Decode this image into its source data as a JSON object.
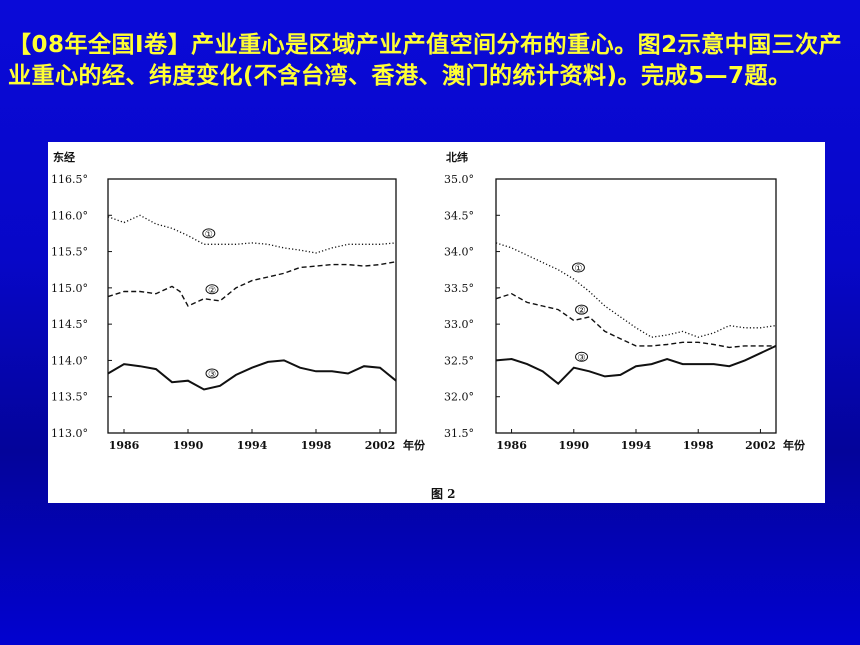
{
  "question": {
    "text": "【08年全国Ⅰ卷】产业重心是区域产业产值空间分布的重心。图2示意中国三次产业重心的经、纬度变化(不含台湾、香港、澳门的统计资料)。完成5—7题。"
  },
  "figure": {
    "caption": "图 2"
  },
  "chart_data": [
    {
      "type": "line",
      "ylabel": "东经",
      "xlabel": "年份",
      "ylim": [
        113.0,
        116.5
      ],
      "xlim": [
        1985,
        2003
      ],
      "yticks": [
        "113.0°",
        "113.5°",
        "114.0°",
        "114.5°",
        "115.0°",
        "115.5°",
        "116.0°",
        "116.5°"
      ],
      "ytick_values": [
        113.0,
        113.5,
        114.0,
        114.5,
        115.0,
        115.5,
        116.0,
        116.5
      ],
      "xticks": [
        "1986",
        "1990",
        "1994",
        "1998",
        "2002"
      ],
      "xtick_values": [
        1986,
        1990,
        1994,
        1998,
        2002
      ],
      "grid": false,
      "series": [
        {
          "name": "①",
          "style": "dotted",
          "x": [
            1985,
            1986,
            1987,
            1988,
            1989,
            1990,
            1991,
            1992,
            1993,
            1994,
            1995,
            1996,
            1997,
            1998,
            1999,
            2000,
            2001,
            2002,
            2003
          ],
          "values": [
            115.98,
            115.9,
            116.0,
            115.88,
            115.82,
            115.72,
            115.6,
            115.6,
            115.6,
            115.62,
            115.6,
            115.55,
            115.52,
            115.48,
            115.55,
            115.6,
            115.6,
            115.6,
            115.62
          ]
        },
        {
          "name": "②",
          "style": "dashed",
          "x": [
            1985,
            1986,
            1987,
            1988,
            1989,
            1989.5,
            1990,
            1991,
            1992,
            1993,
            1994,
            1995,
            1996,
            1997,
            1998,
            1999,
            2000,
            2001,
            2002,
            2003
          ],
          "values": [
            114.88,
            114.95,
            114.95,
            114.92,
            115.02,
            114.95,
            114.75,
            114.85,
            114.82,
            115.0,
            115.1,
            115.15,
            115.2,
            115.28,
            115.3,
            115.32,
            115.32,
            115.3,
            115.32,
            115.36
          ]
        },
        {
          "name": "③",
          "style": "solid",
          "x": [
            1985,
            1986,
            1987,
            1988,
            1989,
            1990,
            1991,
            1992,
            1993,
            1994,
            1995,
            1996,
            1997,
            1998,
            1999,
            2000,
            2001,
            2002,
            2003
          ],
          "values": [
            113.82,
            113.95,
            113.92,
            113.88,
            113.7,
            113.72,
            113.6,
            113.65,
            113.8,
            113.9,
            113.98,
            114.0,
            113.9,
            113.85,
            113.85,
            113.82,
            113.92,
            113.9,
            113.72
          ]
        }
      ],
      "label_positions": {
        "①": [
          1991.3,
          115.75
        ],
        "②": [
          1991.5,
          114.98
        ],
        "③": [
          1991.5,
          113.82
        ]
      }
    },
    {
      "type": "line",
      "ylabel": "北纬",
      "xlabel": "年份",
      "ylim": [
        31.5,
        35.0
      ],
      "xlim": [
        1985,
        2003
      ],
      "yticks": [
        "31.5°",
        "32.0°",
        "32.5°",
        "33.0°",
        "33.5°",
        "34.0°",
        "34.5°",
        "35.0°"
      ],
      "ytick_values": [
        31.5,
        32.0,
        32.5,
        33.0,
        33.5,
        34.0,
        34.5,
        35.0
      ],
      "xticks": [
        "1986",
        "1990",
        "1994",
        "1998",
        "2002"
      ],
      "xtick_values": [
        1986,
        1990,
        1994,
        1998,
        2002
      ],
      "grid": false,
      "series": [
        {
          "name": "①",
          "style": "dotted",
          "x": [
            1985,
            1986,
            1987,
            1988,
            1989,
            1990,
            1991,
            1992,
            1993,
            1994,
            1995,
            1996,
            1997,
            1998,
            1999,
            2000,
            2001,
            2002,
            2003
          ],
          "values": [
            34.12,
            34.05,
            33.95,
            33.85,
            33.75,
            33.62,
            33.45,
            33.25,
            33.1,
            32.95,
            32.82,
            32.85,
            32.9,
            32.82,
            32.88,
            32.98,
            32.95,
            32.95,
            32.98
          ]
        },
        {
          "name": "②",
          "style": "dashed",
          "x": [
            1985,
            1986,
            1987,
            1988,
            1989,
            1990,
            1991,
            1992,
            1993,
            1994,
            1995,
            1996,
            1997,
            1998,
            1999,
            2000,
            2001,
            2002,
            2003
          ],
          "values": [
            33.35,
            33.42,
            33.3,
            33.25,
            33.2,
            33.05,
            33.1,
            32.9,
            32.8,
            32.7,
            32.7,
            32.72,
            32.75,
            32.75,
            32.72,
            32.68,
            32.7,
            32.7,
            32.7
          ]
        },
        {
          "name": "③",
          "style": "solid",
          "x": [
            1985,
            1986,
            1987,
            1988,
            1989,
            1990,
            1991,
            1992,
            1993,
            1994,
            1995,
            1996,
            1997,
            1998,
            1999,
            2000,
            2001,
            2002,
            2003
          ],
          "values": [
            32.5,
            32.52,
            32.45,
            32.35,
            32.18,
            32.4,
            32.35,
            32.28,
            32.3,
            32.42,
            32.45,
            32.52,
            32.45,
            32.45,
            32.45,
            32.42,
            32.5,
            32.6,
            32.7
          ]
        }
      ],
      "label_positions": {
        "①": [
          1990.3,
          33.78
        ],
        "②": [
          1990.5,
          33.2
        ],
        "③": [
          1990.5,
          32.55
        ]
      }
    }
  ]
}
